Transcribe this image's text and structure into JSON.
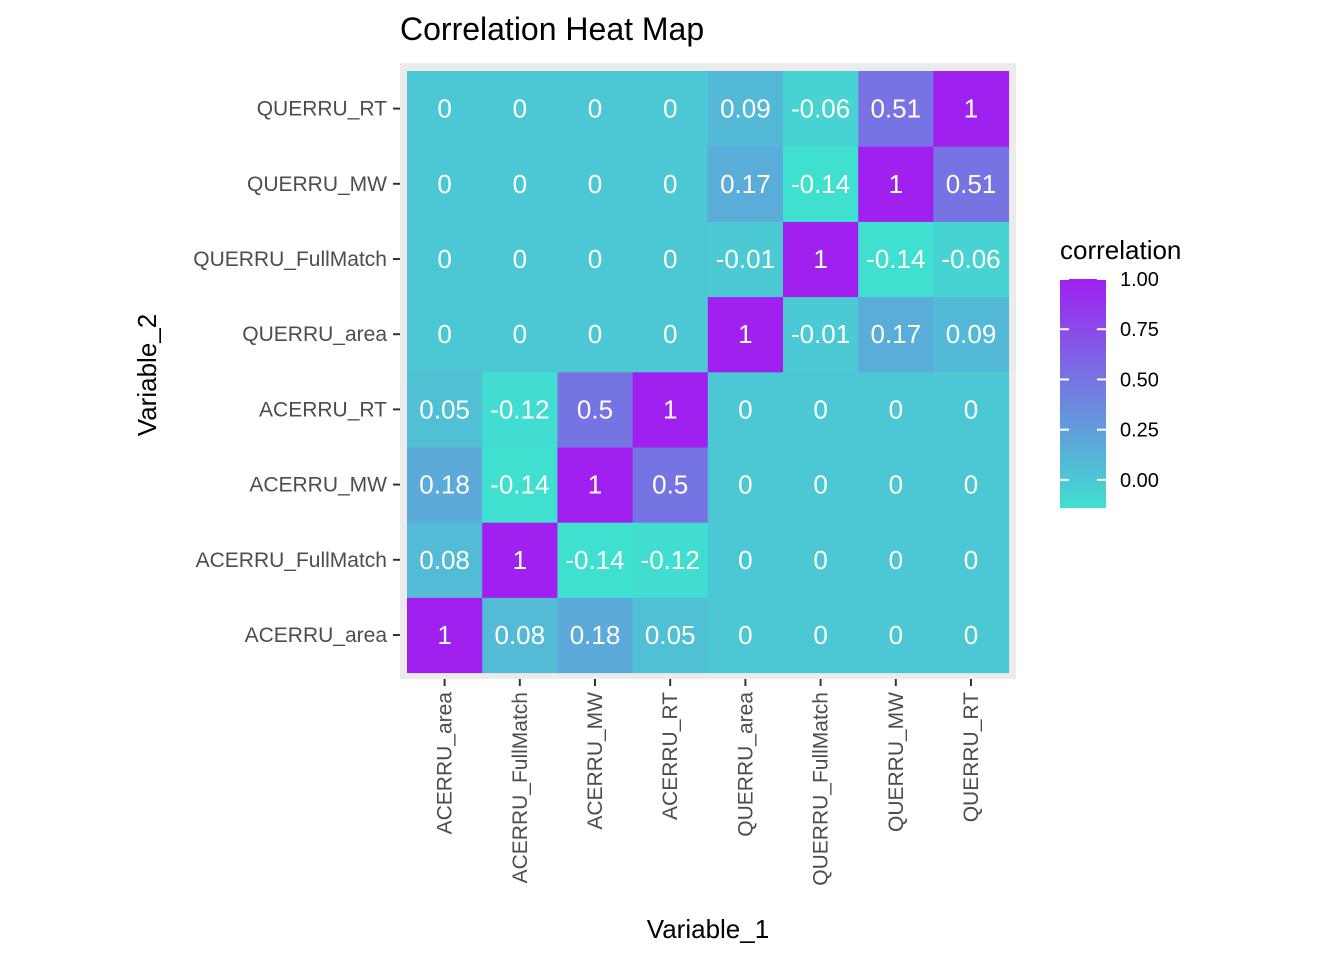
{
  "chart_data": {
    "type": "heatmap",
    "title": "Correlation Heat Map",
    "xlabel": "Variable_1",
    "ylabel": "Variable_2",
    "x_categories": [
      "ACERRU_area",
      "ACERRU_FullMatch",
      "ACERRU_MW",
      "ACERRU_RT",
      "QUERRU_area",
      "QUERRU_FullMatch",
      "QUERRU_MW",
      "QUERRU_RT"
    ],
    "y_categories": [
      "ACERRU_area",
      "ACERRU_FullMatch",
      "ACERRU_MW",
      "ACERRU_RT",
      "QUERRU_area",
      "QUERRU_FullMatch",
      "QUERRU_MW",
      "QUERRU_RT"
    ],
    "values": [
      [
        1,
        0.08,
        0.18,
        0.05,
        0,
        0,
        0,
        0
      ],
      [
        0.08,
        1,
        -0.14,
        -0.12,
        0,
        0,
        0,
        0
      ],
      [
        0.18,
        -0.14,
        1,
        0.5,
        0,
        0,
        0,
        0
      ],
      [
        0.05,
        -0.12,
        0.5,
        1,
        0,
        0,
        0,
        0
      ],
      [
        0,
        0,
        0,
        0,
        1,
        -0.01,
        0.17,
        0.09
      ],
      [
        0,
        0,
        0,
        0,
        -0.01,
        1,
        -0.14,
        -0.06
      ],
      [
        0,
        0,
        0,
        0,
        0.17,
        -0.14,
        1,
        0.51
      ],
      [
        0,
        0,
        0,
        0,
        0.09,
        -0.06,
        0.51,
        1
      ]
    ],
    "legend": {
      "title": "correlation",
      "ticks": [
        1.0,
        0.75,
        0.5,
        0.25,
        0.0
      ],
      "tick_labels": [
        "1.00",
        "0.75",
        "0.50",
        "0.25",
        "0.00"
      ],
      "range": [
        -0.14,
        1.0
      ],
      "placement": "right"
    },
    "colors": {
      "low": "#40E0D0",
      "high": "#A020F0",
      "panel_background": "#EBEBEB",
      "cell_text": "#FFFFFF"
    }
  }
}
